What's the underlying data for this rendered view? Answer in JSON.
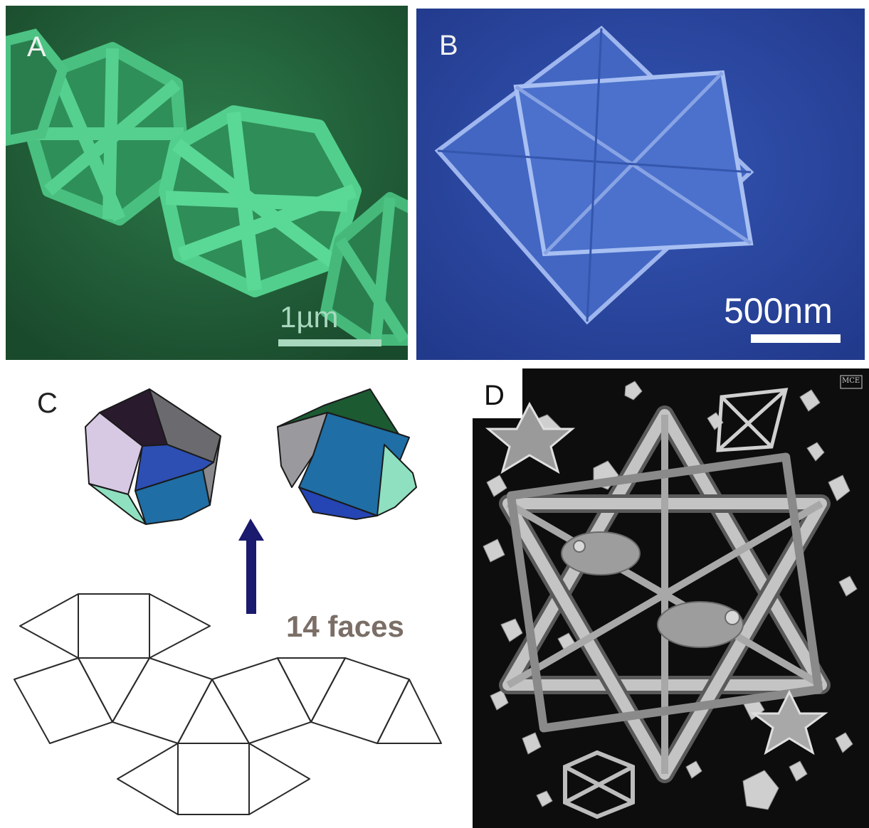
{
  "panels": {
    "a": {
      "label": "A",
      "scale_text": "1µm"
    },
    "b": {
      "label": "B",
      "scale_text": "500nm"
    },
    "c": {
      "label": "C",
      "caption": "14 faces"
    },
    "d": {
      "label": "D",
      "monogram": "MCE"
    }
  },
  "colors": {
    "sem_green_bg": "#1f5a36",
    "sem_green_crystal": "#3fb877",
    "sem_blue_bg": "#2a46a2",
    "sem_blue_crystal": "#4f77cf",
    "arrow": "#1a1a6e",
    "caption": "#7a6e66",
    "escher_bg": "#0d0d0d",
    "escher_frame": "#b9b9b9"
  }
}
